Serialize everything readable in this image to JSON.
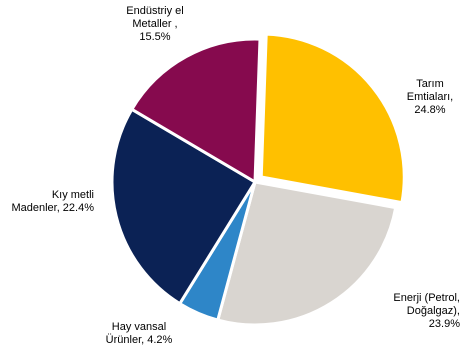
{
  "chart_data": {
    "type": "pie",
    "start_angle_deg": 2,
    "direction": "clockwise",
    "slices": [
      {
        "label_lines": [
          "Tarım",
          "Emtiaları,",
          "24.8%"
        ],
        "value": 24.8,
        "color": "#FFC000",
        "explode": true
      },
      {
        "label_lines": [
          "Enerji (Petrol,",
          "Doğalgaz),",
          "23.9%"
        ],
        "value": 23.9,
        "color": "#D9D5D0",
        "explode": false
      },
      {
        "label_lines": [
          "Hay vansal",
          "Ürünler, 4.2%"
        ],
        "value": 4.2,
        "color": "#2E86C8",
        "explode": false
      },
      {
        "label_lines": [
          "Kıy metli",
          "Madenler, 22.4%"
        ],
        "value": 22.4,
        "color": "#0B2255",
        "explode": false
      },
      {
        "label_lines": [
          "Endüstriy el",
          "Metaller ,",
          "15.5%"
        ],
        "value": 15.5,
        "color": "#860A4E",
        "explode": false
      }
    ]
  }
}
